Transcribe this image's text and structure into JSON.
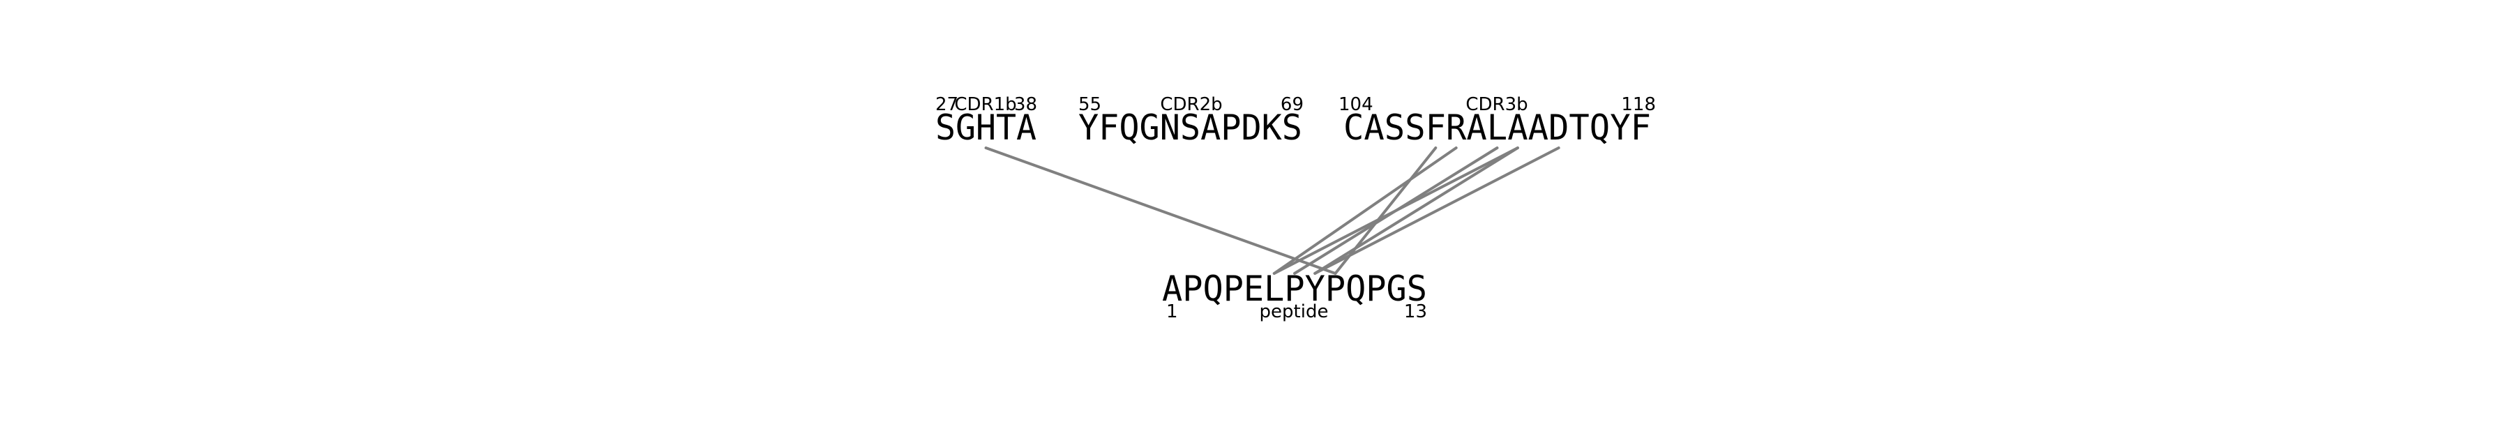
{
  "cdr_segments": [
    {
      "name": "CDR1b",
      "start": "27",
      "end": "38",
      "sequence": "SGHTA"
    },
    {
      "name": "CDR2b",
      "start": "55",
      "end": "69",
      "sequence": "YFQGNSAPDKS"
    },
    {
      "name": "CDR3b",
      "start": "104",
      "end": "118",
      "sequence": "CASSFRALAADTQYF"
    }
  ],
  "peptide": {
    "label": "peptide",
    "start": "1",
    "end": "13",
    "sequence": "APQPELPYPQPGS"
  },
  "contacts": [
    {
      "segment": 0,
      "residue": 2,
      "peptide_residue": 8
    },
    {
      "segment": 2,
      "residue": 4,
      "peptide_residue": 8
    },
    {
      "segment": 2,
      "residue": 5,
      "peptide_residue": 5
    },
    {
      "segment": 2,
      "residue": 7,
      "peptide_residue": 6
    },
    {
      "segment": 2,
      "residue": 8,
      "peptide_residue": 5
    },
    {
      "segment": 2,
      "residue": 8,
      "peptide_residue": 7
    },
    {
      "segment": 2,
      "residue": 10,
      "peptide_residue": 7
    }
  ],
  "colors": {
    "text": "#000000",
    "contact_line": "#808080"
  }
}
